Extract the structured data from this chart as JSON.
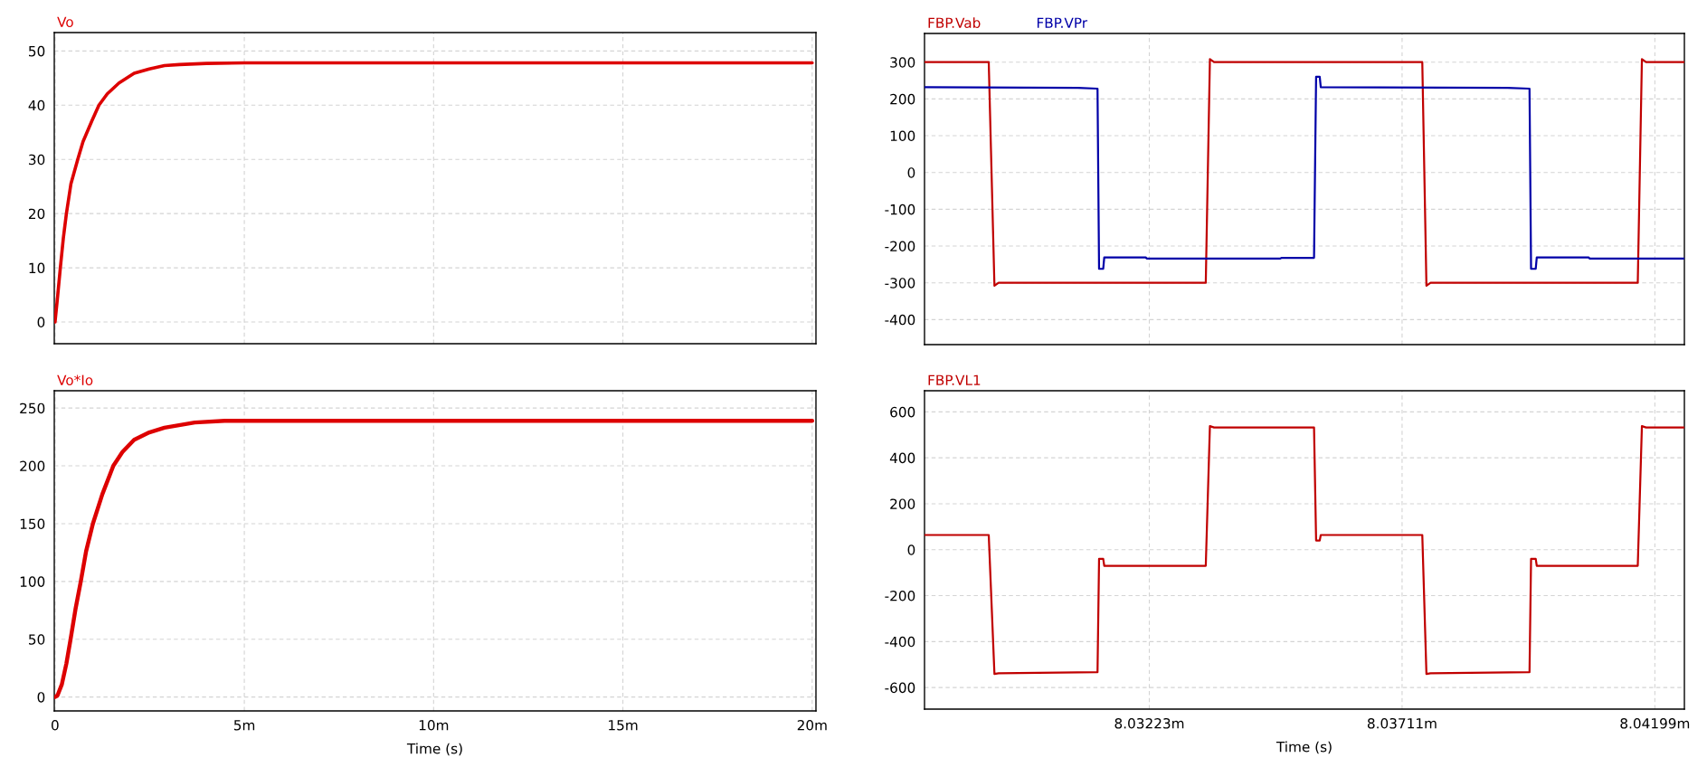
{
  "chart_data": [
    {
      "type": "line",
      "x": [
        0,
        0.064,
        0.14,
        0.22,
        0.3,
        0.42,
        0.6,
        0.74,
        0.98,
        1.16,
        1.38,
        1.69,
        2.09,
        2.49,
        2.89,
        3.29,
        4.0,
        5,
        20
      ],
      "series": [
        {
          "name": "Vo",
          "color": "#dd0000",
          "values": [
            0,
            4.4,
            10,
            15.5,
            20,
            25.5,
            30,
            33.3,
            37.2,
            40,
            42.1,
            44.1,
            45.9,
            46.7,
            47.3,
            47.5,
            47.7,
            47.8,
            47.8
          ]
        }
      ],
      "xlim": [
        -0.02,
        20.1
      ],
      "ylim": [
        -4,
        53.4
      ],
      "xticks": [
        {
          "value": 0,
          "label": null
        },
        {
          "value": 5,
          "label": null
        },
        {
          "value": 10,
          "label": null
        },
        {
          "value": 15,
          "label": null
        },
        {
          "value": 20,
          "label": null
        }
      ],
      "yticks": [
        0,
        10,
        20,
        30,
        40,
        50
      ],
      "grid": true,
      "legend": "top left",
      "tick_labels": "y"
    },
    {
      "type": "line",
      "series": [
        {
          "name": "FBP.Vab",
          "color": "#c00000",
          "x": [
            8.02789,
            8.02913,
            8.02924,
            8.02932,
            8.03332,
            8.0334,
            8.03348,
            8.0375,
            8.03758,
            8.03766,
            8.04166,
            8.04174,
            8.04182,
            8.04256
          ],
          "values": [
            300,
            300,
            -308,
            -300,
            -300,
            308,
            300,
            300,
            -308,
            -300,
            -300,
            308,
            300,
            300
          ]
        },
        {
          "name": "FBP.VPr",
          "color": "#0000a8",
          "x": [
            8.02789,
            8.03085,
            8.03123,
            8.03126,
            8.03134,
            8.03136,
            8.03216,
            8.03218,
            8.03476,
            8.03479,
            8.03541,
            8.03545,
            8.03552,
            8.03554,
            8.03914,
            8.03957,
            8.0396,
            8.03969,
            8.03971,
            8.04071,
            8.04073,
            8.04256
          ],
          "values": [
            232,
            230,
            228,
            -262,
            -262,
            -231,
            -231,
            -234,
            -234,
            -232,
            -232,
            260,
            260,
            232,
            230,
            228,
            -262,
            -262,
            -231,
            -231,
            -234,
            -234
          ]
        }
      ],
      "xlim": [
        8.02789,
        8.04256
      ],
      "ylim": [
        -468,
        378
      ],
      "xticks": [
        {
          "value": 8.03223,
          "label": null
        },
        {
          "value": 8.03711,
          "label": null
        },
        {
          "value": 8.04199,
          "label": null
        }
      ],
      "yticks": [
        -400,
        -300,
        -200,
        -100,
        0,
        100,
        200,
        300
      ],
      "grid": true,
      "legend": "top left",
      "tick_labels": "y"
    },
    {
      "type": "line",
      "xlabel": "Time (s)",
      "x": [
        0,
        0.064,
        0.18,
        0.3,
        0.41,
        0.54,
        0.68,
        0.82,
        1.0,
        1.25,
        1.54,
        1.78,
        2.09,
        2.49,
        2.89,
        3.69,
        4.48,
        20
      ],
      "series": [
        {
          "name": "Vo*Io",
          "color": "#dd0000",
          "values": [
            0,
            1.3,
            11,
            29,
            50,
            76,
            100,
            126,
            150,
            175.5,
            200,
            212,
            222.6,
            229,
            233,
            237.5,
            239,
            239
          ]
        }
      ],
      "xlim": [
        -0.02,
        20.1
      ],
      "ylim": [
        -12,
        265
      ],
      "xticks": [
        0,
        {
          "value": 5,
          "label": "5m"
        },
        {
          "value": 10,
          "label": "10m"
        },
        {
          "value": 15,
          "label": "15m"
        },
        {
          "value": 20,
          "label": "20m"
        }
      ],
      "yticks": [
        0,
        50,
        100,
        150,
        200,
        250
      ],
      "grid": true,
      "legend": "top left"
    },
    {
      "type": "line",
      "xlabel": "Time (s)",
      "x": [
        8.02789,
        8.02913,
        8.02924,
        8.02932,
        8.03123,
        8.03126,
        8.03134,
        8.03136,
        8.03332,
        8.0334,
        8.03348,
        8.03541,
        8.03545,
        8.03552,
        8.03554,
        8.0375,
        8.03758,
        8.03766,
        8.03957,
        8.0396,
        8.03969,
        8.03971,
        8.04166,
        8.04174,
        8.04182,
        8.04256
      ],
      "series": [
        {
          "name": "FBP.VL1",
          "color": "#c00000",
          "values": [
            64,
            64,
            -541,
            -538,
            -533,
            -40,
            -40,
            -70,
            -70,
            538,
            532,
            532,
            40,
            40,
            64,
            64,
            -541,
            -538,
            -533,
            -40,
            -40,
            -70,
            -70,
            538,
            532,
            532
          ]
        }
      ],
      "xlim": [
        8.02789,
        8.04256
      ],
      "ylim": [
        -694,
        692
      ],
      "xticks": [
        {
          "value": 8.03223,
          "label": "8.03223m"
        },
        {
          "value": 8.03711,
          "label": "8.03711m"
        },
        {
          "value": 8.04199,
          "label": "8.04199m"
        }
      ],
      "yticks": [
        -600,
        -400,
        -200,
        0,
        200,
        400,
        600
      ],
      "grid": true,
      "legend": "top left"
    }
  ]
}
